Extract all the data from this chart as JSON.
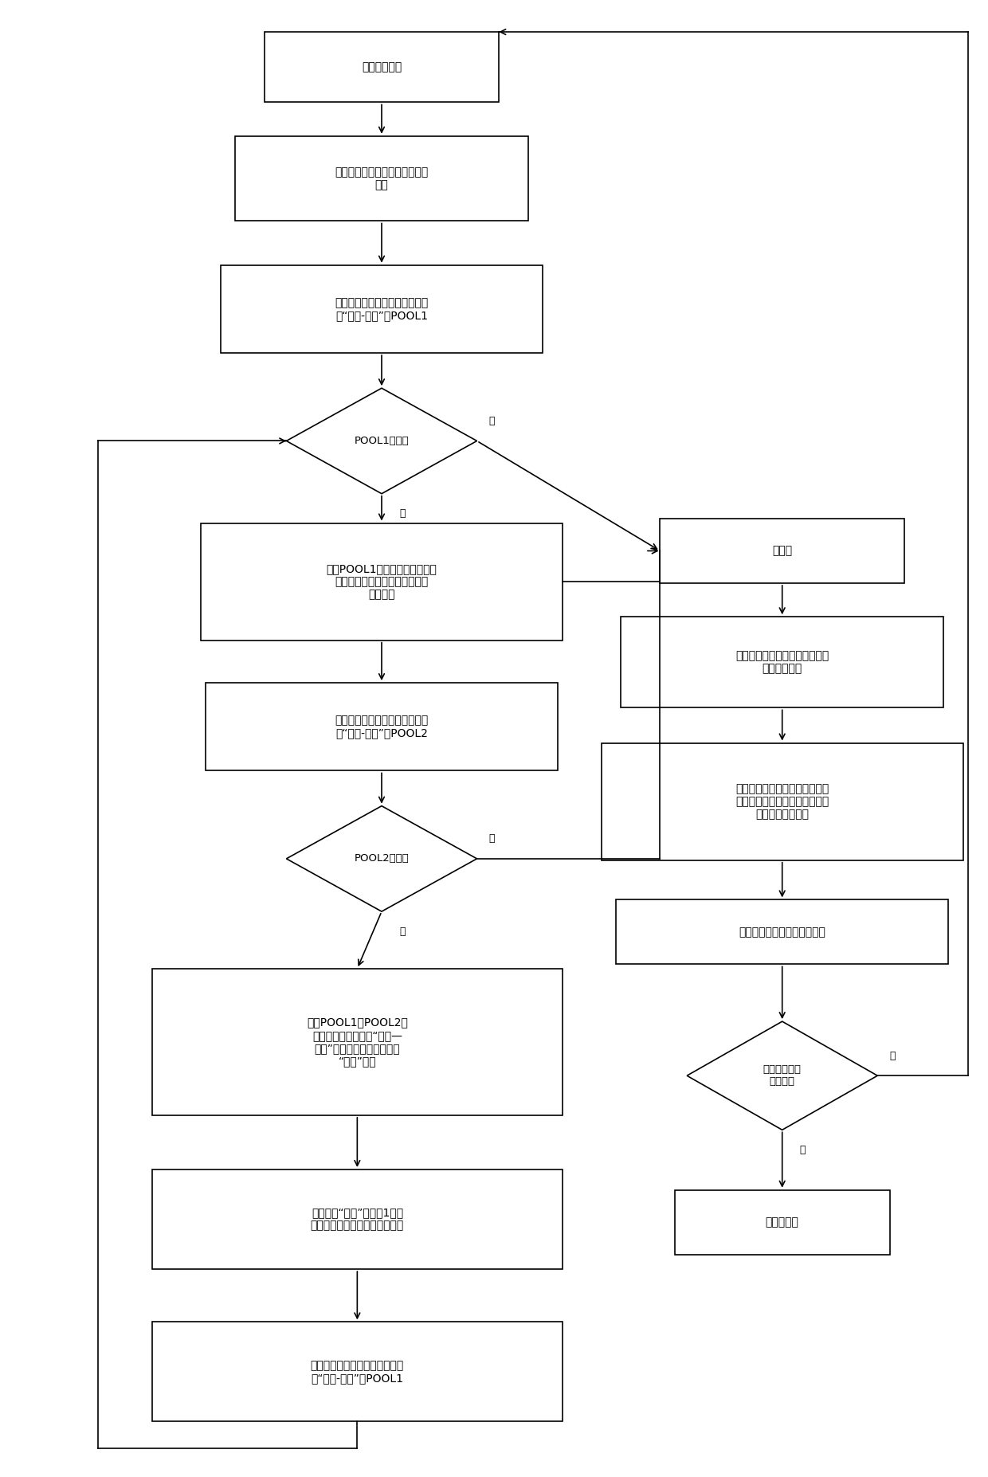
{
  "bg_color": "#ffffff",
  "box_color": "#ffffff",
  "box_edge_color": "#000000",
  "arrow_color": "#000000",
  "text_color": "#000000",
  "font_size": 10,
  "label_start": "任务资源匹配",
  "label_n1": "生成初始解（任务的初始调度方\n案）",
  "label_n2": "对初始解进行任务冲突分析，生\n成“扰动-删除”池POOL1",
  "label_d1": "POOL1非空？",
  "label_n3": "清空POOL1中所有任务的调度方\n案，重新进行调度方案的安排，\n生成新解",
  "label_n4": "对当前解进行任务冲突分析，生\n成“扰动-删除”池POOL2",
  "label_d2": "POOL2非空？",
  "label_n5": "比对POOL1与POOL2，\n找出同时出现在两个“扰动—\n删除”池中的任务，将其记入\n“删除”池，",
  "label_n6": "随机选择“删除”池中的1项任\n务，删除其调度方案，生成新解",
  "label_n7": "对当前解进行任务冲突分析，更\n新“扰动-删除”池POOL1",
  "label_r1": "可行解",
  "label_r2": "记录当前任务集合中的已调度任\n务的调度方案",
  "label_r3": "进行资源与任务集更新，在任务\n集合中删除已调度任务；删除已\n调度任务占用资源",
  "label_r4": "得到规模缩小的新的调度问题",
  "label_d3": "是否达到迭代\n终止条件",
  "label_r5": "输出最终解",
  "label_yes": "是",
  "label_no": "否"
}
